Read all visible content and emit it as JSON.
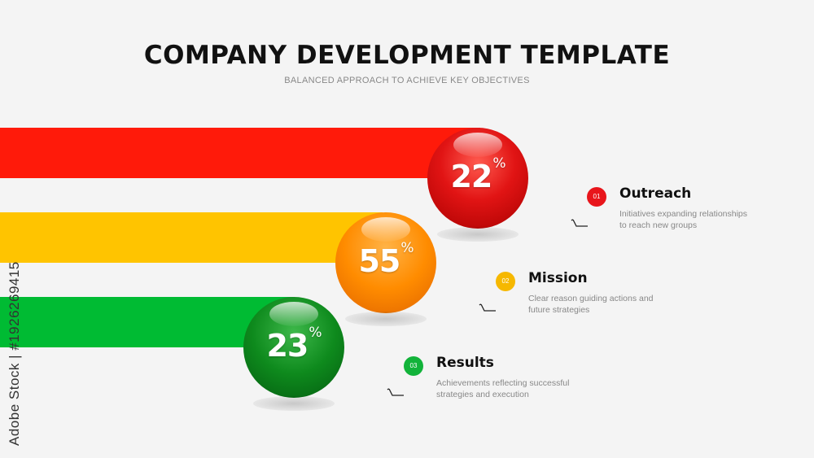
{
  "header": {
    "title": "COMPANY DEVELOPMENT TEMPLATE",
    "subtitle": "BALANCED APPROACH TO ACHIEVE KEY OBJECTIVES"
  },
  "items": [
    {
      "number": "01",
      "percent": "22",
      "percent_sign": "%",
      "title": "Outreach",
      "desc_line1": "Initiatives expanding relationships",
      "desc_line2": "to reach new groups",
      "color": "#e8151b"
    },
    {
      "number": "02",
      "percent": "55",
      "percent_sign": "%",
      "title": "Mission",
      "desc_line1": "Clear reason guiding actions and",
      "desc_line2": "future strategies",
      "color": "#f6b800"
    },
    {
      "number": "03",
      "percent": "23",
      "percent_sign": "%",
      "title": "Results",
      "desc_line1": "Achievements reflecting successful",
      "desc_line2": "strategies and execution",
      "color": "#12b33a"
    }
  ],
  "watermark": "Adobe Stock | #1926269415"
}
